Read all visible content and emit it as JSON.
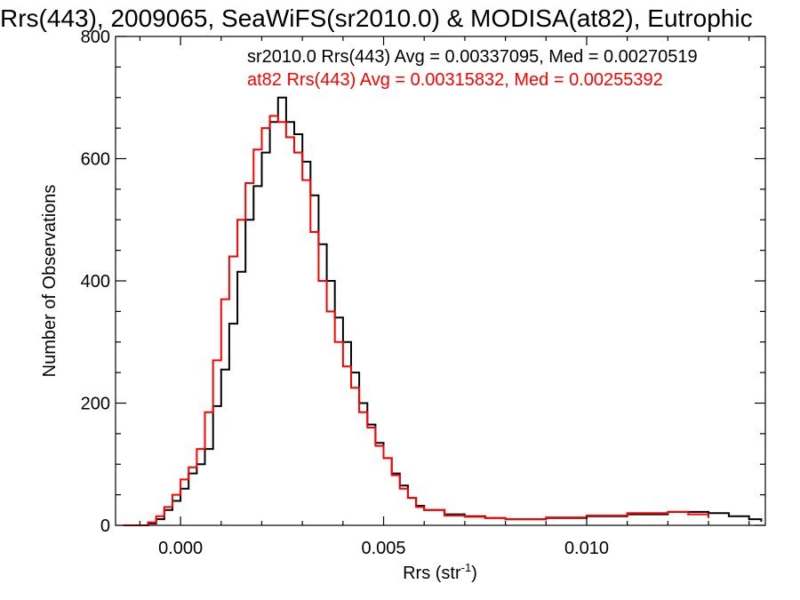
{
  "chart_data": {
    "type": "line",
    "title": "Rrs(443), 2009065, SeaWiFS(sr2010.0) & MODISA(at82), Eutrophic",
    "xlabel": "Rrs (str",
    "xlabel_sup": "-1",
    "xlabel_suffix": ")",
    "ylabel": "Number of Observations",
    "xlim": [
      -0.0016,
      0.0144
    ],
    "ylim": [
      0,
      800
    ],
    "xticks": [
      0.0,
      0.005,
      0.01
    ],
    "xtick_labels": [
      "0.000",
      "0.005",
      "0.010"
    ],
    "yticks": [
      0,
      200,
      400,
      600,
      800
    ],
    "ytick_labels": [
      "0",
      "200",
      "400",
      "600",
      "800"
    ],
    "legend_position": "top-right",
    "series": [
      {
        "name": "sr2010.0",
        "legend_text": "sr2010.0 Rrs(443) Avg = 0.00337095, Med = 0.00270519",
        "color": "#000000",
        "x": [
          -0.0014,
          -0.001,
          -0.0008,
          -0.0006,
          -0.0004,
          -0.0002,
          0.0,
          0.0002,
          0.0004,
          0.0006,
          0.0008,
          0.001,
          0.0012,
          0.0014,
          0.0016,
          0.0018,
          0.002,
          0.0022,
          0.0024,
          0.0026,
          0.0028,
          0.003,
          0.0032,
          0.0034,
          0.0036,
          0.0038,
          0.004,
          0.0042,
          0.0044,
          0.0046,
          0.0048,
          0.005,
          0.0052,
          0.0054,
          0.0056,
          0.0058,
          0.006,
          0.0065,
          0.007,
          0.0075,
          0.008,
          0.009,
          0.01,
          0.011,
          0.012,
          0.013,
          0.0135,
          0.014,
          0.0143
        ],
        "y": [
          0,
          0,
          3,
          10,
          25,
          40,
          60,
          85,
          100,
          125,
          195,
          255,
          330,
          415,
          500,
          555,
          610,
          660,
          700,
          660,
          640,
          595,
          540,
          460,
          400,
          340,
          300,
          250,
          200,
          165,
          135,
          110,
          85,
          65,
          45,
          32,
          25,
          18,
          15,
          12,
          10,
          12,
          15,
          18,
          22,
          20,
          15,
          10,
          6
        ]
      },
      {
        "name": "at82",
        "legend_text": "at82 Rrs(443) Avg = 0.00315832, Med = 0.00255392",
        "color": "#ff0000",
        "x": [
          -0.0014,
          -0.001,
          -0.0008,
          -0.0006,
          -0.0004,
          -0.0002,
          0.0,
          0.0002,
          0.0004,
          0.0006,
          0.0008,
          0.001,
          0.0012,
          0.0014,
          0.0016,
          0.0018,
          0.002,
          0.0022,
          0.0024,
          0.0026,
          0.0028,
          0.003,
          0.0032,
          0.0034,
          0.0036,
          0.0038,
          0.004,
          0.0042,
          0.0044,
          0.0046,
          0.0048,
          0.005,
          0.0052,
          0.0054,
          0.0056,
          0.0058,
          0.006,
          0.0065,
          0.007,
          0.0075,
          0.008,
          0.009,
          0.01,
          0.011,
          0.012,
          0.0125,
          0.013
        ],
        "y": [
          0,
          0,
          5,
          15,
          30,
          50,
          75,
          95,
          125,
          185,
          270,
          370,
          440,
          500,
          560,
          615,
          650,
          670,
          660,
          635,
          610,
          565,
          480,
          400,
          350,
          300,
          260,
          225,
          185,
          160,
          130,
          110,
          82,
          60,
          45,
          30,
          25,
          16,
          14,
          12,
          10,
          13,
          16,
          20,
          22,
          18,
          12
        ]
      }
    ]
  }
}
